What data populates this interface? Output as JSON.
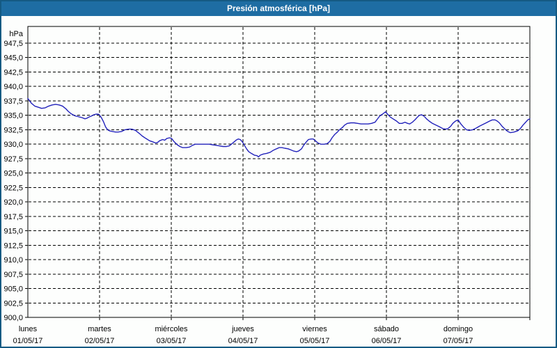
{
  "window": {
    "title": "Presión atmosférica [hPa]"
  },
  "colors": {
    "titlebar_bg": "#1e6da3",
    "titlebar_text": "#ffffff",
    "window_border": "#155a83",
    "content_bg": "#fdfefd",
    "grid": "#000000",
    "axis": "#000000",
    "line": "#2222bb",
    "label_text": "#000000"
  },
  "chart_data": {
    "type": "line",
    "title": "Presión atmosférica [hPa]",
    "unit_label": "hPa",
    "ylim": [
      900.0,
      947.5
    ],
    "ytick_step": 2.5,
    "ytick_labels": [
      "947,5",
      "945,0",
      "942,5",
      "940,0",
      "937,5",
      "935,0",
      "932,5",
      "930,0",
      "927,5",
      "925,0",
      "922,5",
      "920,0",
      "917,5",
      "915,0",
      "912,5",
      "910,0",
      "907,5",
      "905,0",
      "902,5",
      "900,0"
    ],
    "x_total_hours": 168,
    "x_days": [
      {
        "name": "lunes",
        "date": "01/05/17"
      },
      {
        "name": "martes",
        "date": "02/05/17"
      },
      {
        "name": "miércoles",
        "date": "03/05/17"
      },
      {
        "name": "jueves",
        "date": "04/05/17"
      },
      {
        "name": "viernes",
        "date": "05/05/17"
      },
      {
        "name": "sábado",
        "date": "06/05/17"
      },
      {
        "name": "domingo",
        "date": "07/05/17"
      }
    ],
    "grid": "dashed",
    "legend": "none",
    "series": [
      {
        "name": "presión atmosférica",
        "points": [
          [
            0,
            937.9
          ],
          [
            1.2,
            937.1
          ],
          [
            2.3,
            936.6
          ],
          [
            3.5,
            936.4
          ],
          [
            4.6,
            936.2
          ],
          [
            5.8,
            936.3
          ],
          [
            7,
            936.6
          ],
          [
            8.1,
            936.8
          ],
          [
            9.3,
            936.9
          ],
          [
            10.5,
            936.8
          ],
          [
            11.6,
            936.6
          ],
          [
            12.8,
            936.1
          ],
          [
            13.5,
            935.7
          ],
          [
            14.4,
            935.3
          ],
          [
            15.1,
            935.1
          ],
          [
            15.8,
            934.9
          ],
          [
            16.7,
            934.8
          ],
          [
            17.4,
            934.7
          ],
          [
            18.1,
            934.6
          ],
          [
            19.1,
            934.4
          ],
          [
            19.8,
            934.5
          ],
          [
            20.4,
            934.7
          ],
          [
            21.4,
            934.9
          ],
          [
            22.1,
            935.1
          ],
          [
            22.8,
            935.2
          ],
          [
            23.5,
            935.2
          ],
          [
            23.9,
            935.1
          ],
          [
            24.6,
            934.6
          ],
          [
            25.3,
            933.9
          ],
          [
            26,
            933.0
          ],
          [
            26.7,
            932.5
          ],
          [
            27.4,
            932.3
          ],
          [
            28.3,
            932.2
          ],
          [
            29.3,
            932.1
          ],
          [
            30.2,
            932.1
          ],
          [
            31.4,
            932.2
          ],
          [
            32.5,
            932.5
          ],
          [
            33.7,
            932.6
          ],
          [
            34.9,
            932.6
          ],
          [
            36,
            932.4
          ],
          [
            37.2,
            931.9
          ],
          [
            38.3,
            931.4
          ],
          [
            39.5,
            931.0
          ],
          [
            40.7,
            930.6
          ],
          [
            41.8,
            930.4
          ],
          [
            42.8,
            930.2
          ],
          [
            43.4,
            930.3
          ],
          [
            44.1,
            930.6
          ],
          [
            45.1,
            930.8
          ],
          [
            45.8,
            930.7
          ],
          [
            46.5,
            931.0
          ],
          [
            47.4,
            931.1
          ],
          [
            48.1,
            931.0
          ],
          [
            49,
            930.4
          ],
          [
            50,
            929.9
          ],
          [
            50.9,
            929.6
          ],
          [
            51.8,
            929.4
          ],
          [
            53,
            929.4
          ],
          [
            54.1,
            929.5
          ],
          [
            55.1,
            929.8
          ],
          [
            56,
            930.0
          ],
          [
            57.2,
            930.0
          ],
          [
            58.3,
            930.0
          ],
          [
            59.5,
            930.0
          ],
          [
            60.7,
            930.0
          ],
          [
            61.8,
            929.9
          ],
          [
            63,
            929.8
          ],
          [
            64.1,
            929.7
          ],
          [
            65.3,
            929.6
          ],
          [
            66.5,
            929.6
          ],
          [
            67.4,
            929.7
          ],
          [
            68.1,
            930.0
          ],
          [
            68.8,
            930.3
          ],
          [
            69.7,
            930.7
          ],
          [
            70.4,
            930.9
          ],
          [
            71.1,
            930.8
          ],
          [
            71.8,
            930.4
          ],
          [
            72.5,
            929.8
          ],
          [
            73.2,
            929.2
          ],
          [
            73.9,
            928.7
          ],
          [
            74.8,
            928.4
          ],
          [
            75.8,
            928.1
          ],
          [
            76.7,
            928.0
          ],
          [
            77.2,
            927.8
          ],
          [
            77.8,
            928.1
          ],
          [
            78.8,
            928.3
          ],
          [
            79.9,
            928.4
          ],
          [
            81.1,
            928.6
          ],
          [
            82,
            928.9
          ],
          [
            83.2,
            929.2
          ],
          [
            84.1,
            929.4
          ],
          [
            85,
            929.4
          ],
          [
            86,
            929.3
          ],
          [
            87.1,
            929.2
          ],
          [
            88.1,
            929.0
          ],
          [
            89,
            928.8
          ],
          [
            89.9,
            928.7
          ],
          [
            90.6,
            928.8
          ],
          [
            91.6,
            929.2
          ],
          [
            92.3,
            929.8
          ],
          [
            93.2,
            930.4
          ],
          [
            93.9,
            930.8
          ],
          [
            94.8,
            930.9
          ],
          [
            95.5,
            930.9
          ],
          [
            96.2,
            930.6
          ],
          [
            97.1,
            930.2
          ],
          [
            98.1,
            930.0
          ],
          [
            99.2,
            930.0
          ],
          [
            100.2,
            930.1
          ],
          [
            101.1,
            930.5
          ],
          [
            101.8,
            931.1
          ],
          [
            102.7,
            931.7
          ],
          [
            103.6,
            932.1
          ],
          [
            104.3,
            932.5
          ],
          [
            105.3,
            932.9
          ],
          [
            106,
            933.3
          ],
          [
            106.9,
            933.6
          ],
          [
            108.1,
            933.7
          ],
          [
            109.2,
            933.7
          ],
          [
            110.4,
            933.6
          ],
          [
            111.5,
            933.5
          ],
          [
            112.7,
            933.5
          ],
          [
            113.9,
            933.5
          ],
          [
            115,
            933.6
          ],
          [
            116.2,
            933.8
          ],
          [
            116.9,
            934.3
          ],
          [
            117.8,
            934.9
          ],
          [
            118.7,
            935.2
          ],
          [
            119.7,
            935.6
          ],
          [
            120.4,
            935.2
          ],
          [
            121.3,
            934.7
          ],
          [
            122.2,
            934.4
          ],
          [
            123.4,
            934.0
          ],
          [
            124.3,
            933.6
          ],
          [
            125.2,
            933.6
          ],
          [
            126.2,
            933.8
          ],
          [
            127.1,
            933.6
          ],
          [
            127.8,
            933.5
          ],
          [
            128.7,
            933.8
          ],
          [
            129.7,
            934.3
          ],
          [
            130.4,
            934.7
          ],
          [
            131,
            935.0
          ],
          [
            131.8,
            935.1
          ],
          [
            132.7,
            934.8
          ],
          [
            133.4,
            934.4
          ],
          [
            134.3,
            934.0
          ],
          [
            135.4,
            933.6
          ],
          [
            136.6,
            933.3
          ],
          [
            137.8,
            933.0
          ],
          [
            138.9,
            932.7
          ],
          [
            139.9,
            932.6
          ],
          [
            140.6,
            932.7
          ],
          [
            141.5,
            933.1
          ],
          [
            142.2,
            933.6
          ],
          [
            143.1,
            934.0
          ],
          [
            144,
            934.2
          ],
          [
            144.9,
            933.5
          ],
          [
            145.9,
            932.9
          ],
          [
            146.8,
            932.5
          ],
          [
            147.7,
            932.4
          ],
          [
            148.9,
            932.5
          ],
          [
            150.1,
            932.8
          ],
          [
            151.1,
            933.1
          ],
          [
            152.2,
            933.4
          ],
          [
            153.4,
            933.7
          ],
          [
            154.5,
            934.0
          ],
          [
            155.4,
            934.2
          ],
          [
            156.4,
            934.2
          ],
          [
            157.1,
            934.0
          ],
          [
            157.8,
            933.7
          ],
          [
            158.7,
            933.1
          ],
          [
            159.7,
            932.6
          ],
          [
            160.6,
            932.2
          ],
          [
            161.5,
            932.0
          ],
          [
            162.7,
            932.1
          ],
          [
            163.9,
            932.3
          ],
          [
            164.8,
            932.7
          ],
          [
            165.7,
            933.3
          ],
          [
            166.6,
            933.8
          ],
          [
            167.3,
            934.2
          ],
          [
            168,
            934.4
          ]
        ]
      }
    ]
  }
}
